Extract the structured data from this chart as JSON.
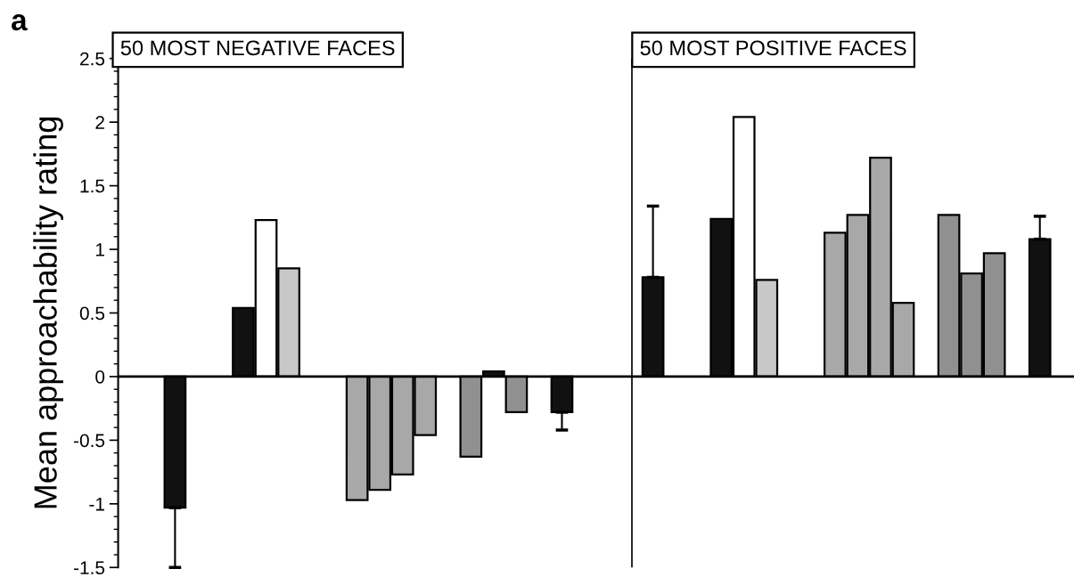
{
  "chart_data": {
    "type": "bar",
    "ylabel": "Mean approachability rating",
    "annotations": [
      "a",
      "50 MOST NEGATIVE FACES",
      "50 MOST POSITIVE FACES"
    ],
    "categories": [
      null,
      null,
      null,
      null,
      null,
      null,
      null,
      null,
      null,
      null,
      null,
      null,
      null,
      null,
      null,
      null,
      null,
      null,
      null,
      null,
      null,
      null,
      null,
      null,
      null,
      null,
      null,
      null,
      null,
      null,
      null,
      null,
      null,
      null,
      null,
      null,
      null,
      null,
      null,
      null,
      null,
      null
    ],
    "values": [
      null,
      null,
      -1.03,
      null,
      null,
      0.54,
      1.23,
      0.85,
      null,
      null,
      -0.97,
      -0.89,
      -0.77,
      -0.46,
      null,
      -0.63,
      0.04,
      -0.28,
      null,
      -0.28,
      null,
      null,
      null,
      0.78,
      null,
      null,
      1.24,
      2.04,
      0.76,
      null,
      null,
      1.13,
      1.27,
      1.72,
      0.58,
      null,
      1.27,
      0.81,
      0.97,
      null,
      1.08,
      null
    ],
    "colors": [
      null,
      null,
      "#111111",
      null,
      null,
      "#111111",
      "#ffffff",
      "#c8c8c8",
      null,
      null,
      "#a8a8a8",
      "#a8a8a8",
      "#a8a8a8",
      "#a8a8a8",
      null,
      "#909090",
      "#111111",
      "#909090",
      null,
      "#111111",
      null,
      null,
      null,
      "#111111",
      null,
      null,
      "#111111",
      "#ffffff",
      "#c8c8c8",
      null,
      null,
      "#a8a8a8",
      "#a8a8a8",
      "#a8a8a8",
      "#a8a8a8",
      null,
      "#909090",
      "#909090",
      "#909090",
      null,
      "#111111",
      null
    ],
    "errors": [
      null,
      null,
      [
        -1.5,
        -1.03
      ],
      null,
      null,
      null,
      null,
      null,
      null,
      null,
      null,
      null,
      null,
      null,
      null,
      null,
      null,
      null,
      null,
      [
        -0.42,
        -0.28
      ],
      null,
      null,
      null,
      [
        0.78,
        1.34
      ],
      null,
      null,
      null,
      null,
      null,
      null,
      null,
      null,
      null,
      null,
      null,
      null,
      null,
      null,
      null,
      null,
      [
        1.08,
        1.26
      ],
      null
    ],
    "ylim": [
      -1.5,
      2.5
    ],
    "yticks": [
      -1.5,
      -1,
      -0.5,
      0,
      0.5,
      1,
      1.5,
      2,
      2.5
    ],
    "tick_labels": "y",
    "grid": false
  }
}
